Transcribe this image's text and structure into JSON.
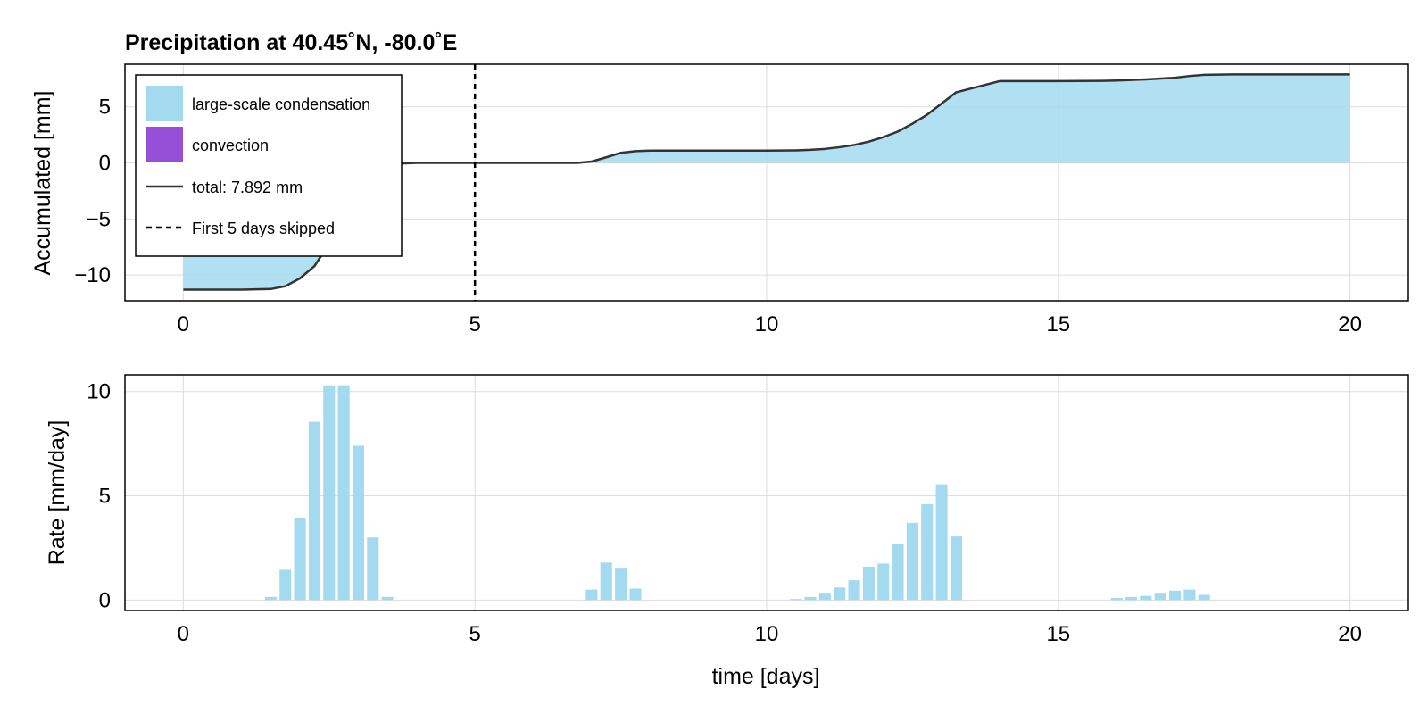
{
  "colors": {
    "large_scale": "#a3daf0",
    "convection": "#9650d8",
    "total_line": "#333333",
    "grid": "#dddddd",
    "frame": "#000000"
  },
  "chart_data": [
    {
      "type": "area",
      "title": "Precipitation at 40.45˚N, -80.0˚E",
      "xlabel": "",
      "ylabel": "Accumulated [mm]",
      "xlim": [
        -1,
        21
      ],
      "ylim": [
        -12.3,
        8.8
      ],
      "xticks": [
        0,
        5,
        10,
        15,
        20
      ],
      "yticks": [
        5,
        0,
        -5,
        -10
      ],
      "tick_labels_x": [
        "0",
        "5",
        "10",
        "15",
        "20"
      ],
      "tick_labels_y": [
        "5",
        "0",
        "−5",
        "−10"
      ],
      "grid": true,
      "legend_placement": "top-left",
      "legend": [
        {
          "label": "large-scale condensation",
          "kind": "patch",
          "color": "#a3daf0"
        },
        {
          "label": "convection",
          "kind": "patch",
          "color": "#9650d8"
        },
        {
          "label": "total: 7.892 mm",
          "kind": "line",
          "color": "#333333"
        },
        {
          "label": "First 5 days skipped",
          "kind": "dashed",
          "color": "#000000"
        }
      ],
      "vline_x": 5,
      "series": [
        {
          "name": "total: 7.892 mm",
          "x": [
            0,
            0.5,
            1.0,
            1.5,
            1.75,
            2.0,
            2.25,
            2.5,
            2.75,
            3.0,
            3.25,
            3.5,
            3.75,
            4.0,
            5.0,
            6.0,
            6.75,
            7.0,
            7.25,
            7.5,
            7.75,
            8.0,
            9.0,
            10.0,
            10.5,
            10.75,
            11.0,
            11.25,
            11.5,
            11.75,
            12.0,
            12.25,
            12.5,
            12.75,
            13.0,
            13.25,
            14.0,
            15.0,
            15.75,
            16.0,
            16.5,
            17.0,
            17.25,
            17.5,
            18.0,
            19.0,
            20.0
          ],
          "y": [
            -11.3,
            -11.3,
            -11.3,
            -11.25,
            -11.0,
            -10.3,
            -9.2,
            -7.2,
            -4.9,
            -2.4,
            -0.9,
            -0.3,
            -0.05,
            0.0,
            0.0,
            0.0,
            0.0,
            0.12,
            0.5,
            0.9,
            1.05,
            1.1,
            1.1,
            1.1,
            1.12,
            1.17,
            1.25,
            1.4,
            1.6,
            1.9,
            2.3,
            2.8,
            3.5,
            4.3,
            5.3,
            6.3,
            7.3,
            7.3,
            7.32,
            7.35,
            7.45,
            7.6,
            7.75,
            7.85,
            7.89,
            7.89,
            7.89
          ]
        }
      ]
    },
    {
      "type": "bar",
      "title": "",
      "xlabel": "time [days]",
      "ylabel": "Rate [mm/day]",
      "xlim": [
        -1,
        21
      ],
      "ylim": [
        -0.5,
        10.8
      ],
      "xticks": [
        0,
        5,
        10,
        15,
        20
      ],
      "yticks": [
        0,
        5,
        10
      ],
      "tick_labels_x": [
        "0",
        "5",
        "10",
        "15",
        "20"
      ],
      "tick_labels_y": [
        "0",
        "5",
        "10"
      ],
      "grid": true,
      "bar_width_days": 0.2,
      "series": [
        {
          "name": "large-scale condensation",
          "x": [
            1.5,
            1.75,
            2.0,
            2.25,
            2.5,
            2.75,
            3.0,
            3.25,
            3.5,
            7.0,
            7.25,
            7.5,
            7.75,
            10.5,
            10.75,
            11.0,
            11.25,
            11.5,
            11.75,
            12.0,
            12.25,
            12.5,
            12.75,
            13.0,
            13.25,
            16.0,
            16.25,
            16.5,
            16.75,
            17.0,
            17.25,
            17.5
          ],
          "values": [
            0.15,
            1.45,
            3.95,
            8.55,
            10.3,
            10.3,
            7.4,
            3.0,
            0.15,
            0.5,
            1.8,
            1.55,
            0.55,
            0.05,
            0.15,
            0.35,
            0.6,
            0.95,
            1.6,
            1.75,
            2.7,
            3.7,
            4.6,
            5.55,
            3.05,
            0.1,
            0.15,
            0.2,
            0.35,
            0.45,
            0.5,
            0.25
          ]
        }
      ]
    }
  ]
}
